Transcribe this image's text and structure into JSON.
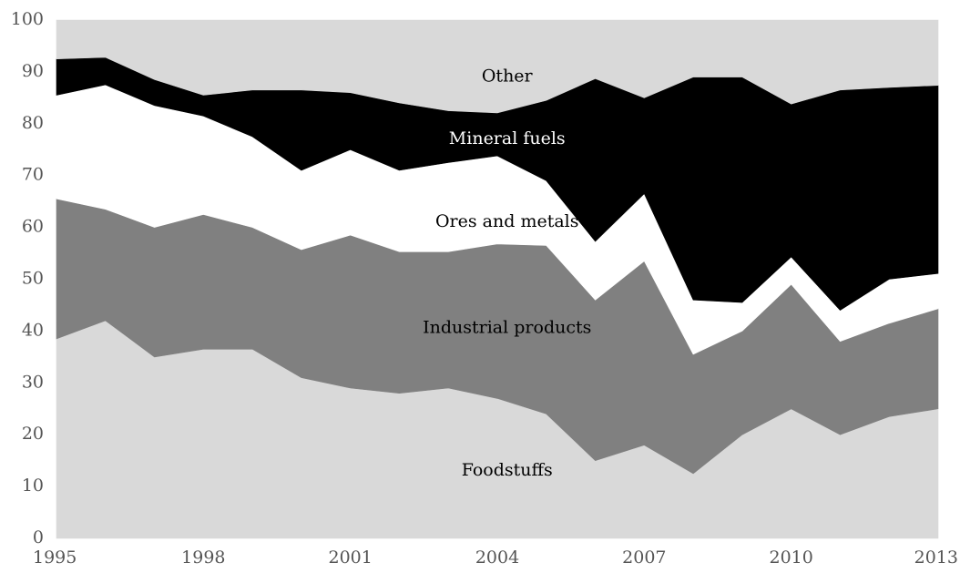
{
  "chart_data": {
    "type": "area",
    "stacked": true,
    "title": "",
    "xlabel": "",
    "ylabel": "",
    "ylim": [
      0,
      100
    ],
    "yticks": [
      0,
      10,
      20,
      30,
      40,
      50,
      60,
      70,
      80,
      90,
      100
    ],
    "xticks": [
      1995,
      1998,
      2001,
      2004,
      2007,
      2010,
      2013
    ],
    "grid": false,
    "legend": "none (labels placed inside areas)",
    "x": [
      1995,
      1996,
      1997,
      1998,
      1999,
      2000,
      2001,
      2002,
      2003,
      2004,
      2005,
      2006,
      2007,
      2008,
      2009,
      2010,
      2011,
      2012,
      2013
    ],
    "series": [
      {
        "name": "Foodstuffs",
        "color": "#d9d9d9",
        "values": [
          38.5,
          42,
          35,
          36.5,
          36.5,
          31,
          29,
          28,
          29,
          27,
          24,
          15,
          18,
          12.5,
          20,
          25,
          20,
          23.5,
          25
        ]
      },
      {
        "name": "Industrial products",
        "color": "#808080",
        "values": [
          27,
          21.5,
          25,
          26,
          23.5,
          24.7,
          29.5,
          27.3,
          26.3,
          29.8,
          32.5,
          31,
          35.5,
          23,
          20,
          24,
          18,
          18,
          19.3
        ]
      },
      {
        "name": "Ores and metals",
        "color": "#ffffff",
        "values": [
          20,
          24,
          23.5,
          19,
          17.5,
          15.3,
          16.5,
          15.7,
          17.2,
          17,
          12.5,
          11.3,
          13,
          10.5,
          5.5,
          5.3,
          6,
          8.5,
          6.8
        ]
      },
      {
        "name": "Mineral fuels",
        "color": "#000000",
        "values": [
          7,
          5.3,
          5,
          4,
          9,
          15.5,
          11,
          13,
          10,
          8.3,
          15.5,
          31.4,
          18.5,
          43,
          43.5,
          29.5,
          42.5,
          37,
          36.3
        ]
      },
      {
        "name": "Other",
        "color": "#d9d9d9",
        "values": [
          7.5,
          7.2,
          11.5,
          14.5,
          13.5,
          13.5,
          14,
          16,
          17.5,
          17.9,
          15.5,
          11.3,
          15,
          11,
          11,
          16.2,
          13.5,
          13,
          12.6
        ]
      }
    ],
    "annotations": [
      {
        "text": "Other",
        "x": 2004.2,
        "y": 89,
        "color": "#000000"
      },
      {
        "text": "Mineral fuels",
        "x": 2004.2,
        "y": 77,
        "color": "#ffffff"
      },
      {
        "text": "Ores and metals",
        "x": 2004.2,
        "y": 61,
        "color": "#000000"
      },
      {
        "text": "Industrial products",
        "x": 2004.2,
        "y": 40.5,
        "color": "#000000"
      },
      {
        "text": "Foodstuffs",
        "x": 2004.2,
        "y": 13,
        "color": "#000000"
      }
    ]
  }
}
